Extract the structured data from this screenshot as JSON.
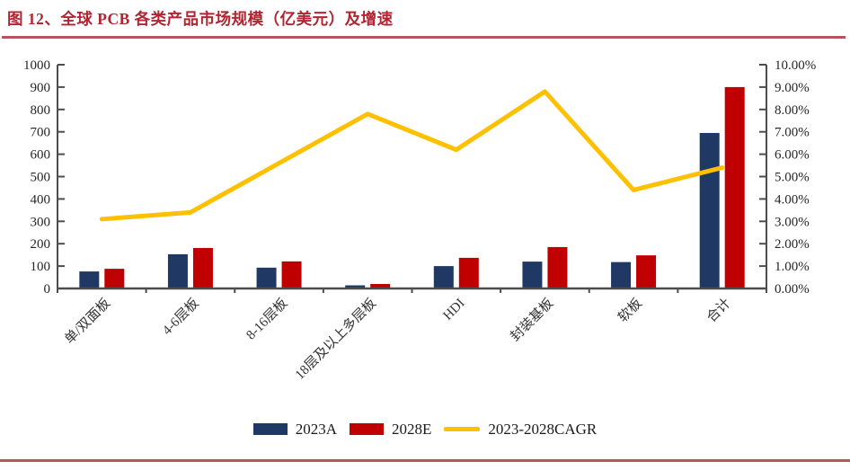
{
  "header": {
    "title": "图 12、全球 PCB 各类产品市场规模（亿美元）及增速"
  },
  "colors": {
    "bar_2023a": "#203864",
    "bar_2028e": "#c00000",
    "cagr_line": "#ffc000",
    "title_red": "#b02531",
    "rule_red": "#b4565e",
    "axis": "#4d4d4d",
    "tick_text": "#262626"
  },
  "legend": [
    {
      "label": "2023A",
      "swatch": "rect",
      "color_key": "bar_2023a"
    },
    {
      "label": "2028E",
      "swatch": "rect",
      "color_key": "bar_2028e"
    },
    {
      "label": "2023-2028CAGR",
      "swatch": "line",
      "color_key": "cagr_line"
    }
  ],
  "chart_data": {
    "type": "bar",
    "subtype": "grouped-bars-with-line-on-secondary-axis",
    "title": "全球 PCB 各类产品市场规模（亿美元）及增速",
    "categories": [
      "单/双面板",
      "4-6层板",
      "8-16层板",
      "18层及以上多层板",
      "HDI",
      "封装基板",
      "软板",
      "合计"
    ],
    "series": [
      {
        "name": "2023A",
        "type": "bar",
        "axis": "left",
        "values": [
          76,
          153,
          93,
          14,
          100,
          120,
          118,
          695
        ]
      },
      {
        "name": "2028E",
        "type": "bar",
        "axis": "left",
        "values": [
          88,
          181,
          121,
          20,
          137,
          185,
          148,
          900
        ]
      },
      {
        "name": "2023-2028CAGR",
        "type": "line",
        "axis": "right",
        "values": [
          3.1,
          3.4,
          5.6,
          7.8,
          6.2,
          8.8,
          4.4,
          5.4
        ]
      }
    ],
    "left_axis": {
      "min": 0,
      "max": 1000,
      "step": 100,
      "ticks": [
        "0",
        "100",
        "200",
        "300",
        "400",
        "500",
        "600",
        "700",
        "800",
        "900",
        "1000"
      ]
    },
    "right_axis": {
      "min": 0,
      "max": 10,
      "step": 1,
      "unit": "%",
      "ticks": [
        "0.00%",
        "1.00%",
        "2.00%",
        "3.00%",
        "4.00%",
        "5.00%",
        "6.00%",
        "7.00%",
        "8.00%",
        "9.00%",
        "10.00%"
      ]
    },
    "grid": false,
    "legend_position": "bottom"
  }
}
